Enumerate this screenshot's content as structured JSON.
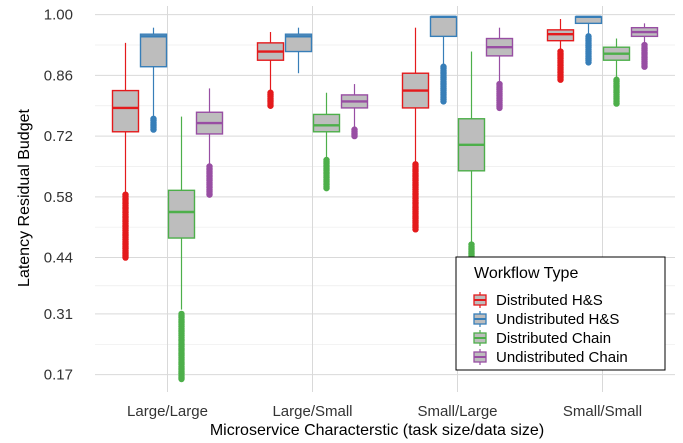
{
  "chart_data": {
    "type": "box",
    "xlabel": "Microservice Characterstic (task size/data size)",
    "ylabel": "Latency Residual Budget",
    "categories": [
      "Large/Large",
      "Large/Small",
      "Small/Large",
      "Small/Small"
    ],
    "yticks": [
      "0.17",
      "0.31",
      "0.44",
      "0.58",
      "0.72",
      "0.86",
      "1.00"
    ],
    "ylim": [
      0.13,
      1.02
    ],
    "grid": true,
    "legend": {
      "title": "Workflow Type",
      "position": "bottom-right"
    },
    "series": [
      {
        "name": "Distributed H&S",
        "color": "#e41a1c",
        "boxes": [
          {
            "q1": 0.73,
            "median": 0.785,
            "q3": 0.825,
            "lower": 0.59,
            "upper": 0.935,
            "outliers_low": [
              0.44,
              0.585
            ]
          },
          {
            "q1": 0.895,
            "median": 0.915,
            "q3": 0.935,
            "lower": 0.82,
            "upper": 0.96,
            "outliers_low": [
              0.79,
              0.82
            ]
          },
          {
            "q1": 0.785,
            "median": 0.825,
            "q3": 0.865,
            "lower": 0.66,
            "upper": 0.97,
            "outliers_low": [
              0.505,
              0.655
            ]
          },
          {
            "q1": 0.94,
            "median": 0.955,
            "q3": 0.965,
            "lower": 0.915,
            "upper": 0.99,
            "outliers_low": [
              0.85,
              0.915
            ]
          }
        ]
      },
      {
        "name": "Undistributed H&S",
        "color": "#377eb8",
        "boxes": [
          {
            "q1": 0.88,
            "median": 0.95,
            "q3": 0.955,
            "lower": 0.76,
            "upper": 0.97,
            "outliers_low": [
              0.735,
              0.76
            ]
          },
          {
            "q1": 0.915,
            "median": 0.95,
            "q3": 0.955,
            "lower": 0.865,
            "upper": 0.97,
            "outliers_low": []
          },
          {
            "q1": 0.95,
            "median": 0.995,
            "q3": 0.995,
            "lower": 0.88,
            "upper": 0.995,
            "outliers_low": [
              0.8,
              0.88
            ]
          },
          {
            "q1": 0.98,
            "median": 0.995,
            "q3": 0.995,
            "lower": 0.95,
            "upper": 0.995,
            "outliers_low": [
              0.89,
              0.95
            ]
          }
        ]
      },
      {
        "name": "Distributed Chain",
        "color": "#4daf4a",
        "boxes": [
          {
            "q1": 0.485,
            "median": 0.545,
            "q3": 0.595,
            "lower": 0.32,
            "upper": 0.765,
            "outliers_low": [
              0.16,
              0.31
            ]
          },
          {
            "q1": 0.73,
            "median": 0.745,
            "q3": 0.77,
            "lower": 0.67,
            "upper": 0.82,
            "outliers_low": [
              0.6,
              0.665
            ]
          },
          {
            "q1": 0.64,
            "median": 0.7,
            "q3": 0.76,
            "lower": 0.475,
            "upper": 0.915,
            "outliers_low": [
              0.27,
              0.47
            ]
          },
          {
            "q1": 0.895,
            "median": 0.91,
            "q3": 0.925,
            "lower": 0.855,
            "upper": 0.945,
            "outliers_low": [
              0.795,
              0.85
            ]
          }
        ]
      },
      {
        "name": "Undistributed Chain",
        "color": "#984ea3",
        "boxes": [
          {
            "q1": 0.725,
            "median": 0.75,
            "q3": 0.775,
            "lower": 0.65,
            "upper": 0.83,
            "outliers_low": [
              0.585,
              0.65
            ]
          },
          {
            "q1": 0.785,
            "median": 0.8,
            "q3": 0.815,
            "lower": 0.74,
            "upper": 0.84,
            "outliers_low": [
              0.72,
              0.735
            ]
          },
          {
            "q1": 0.905,
            "median": 0.925,
            "q3": 0.945,
            "lower": 0.84,
            "upper": 0.97,
            "outliers_low": [
              0.785,
              0.84
            ]
          },
          {
            "q1": 0.95,
            "median": 0.96,
            "q3": 0.97,
            "lower": 0.935,
            "upper": 0.98,
            "outliers_low": [
              0.88,
              0.93
            ]
          }
        ]
      }
    ]
  }
}
